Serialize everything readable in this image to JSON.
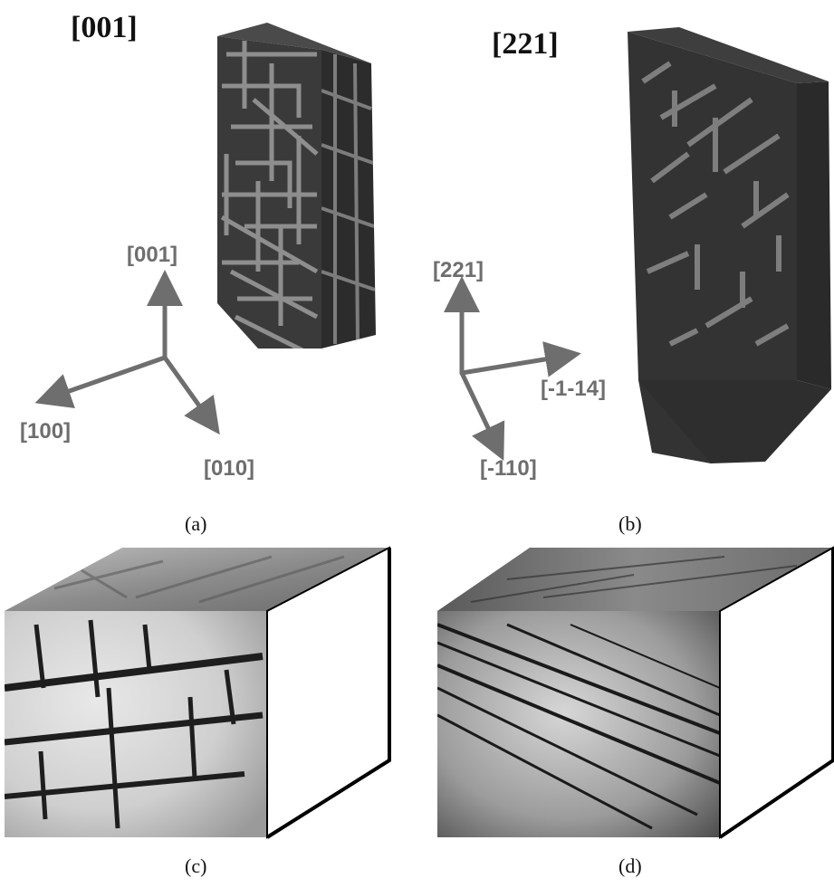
{
  "panels": {
    "a": {
      "orientation": "[001]",
      "caption": "(a)",
      "axes": {
        "up": "[001]",
        "left": "[100]",
        "down": "[010]"
      }
    },
    "b": {
      "orientation": "[221]",
      "caption": "(b)",
      "axes": {
        "up": "[221]",
        "right": "[-1-14]",
        "down": "[-110]"
      }
    },
    "c": {
      "caption": "(c)"
    },
    "d": {
      "caption": "(d)"
    }
  },
  "colors": {
    "axis_gray": "#6e6e6e",
    "block_dark": "#333333",
    "lath_gray": "#8a8a8a",
    "tem_light": "#d8d8d8",
    "tem_dark": "#1e1e1e"
  }
}
